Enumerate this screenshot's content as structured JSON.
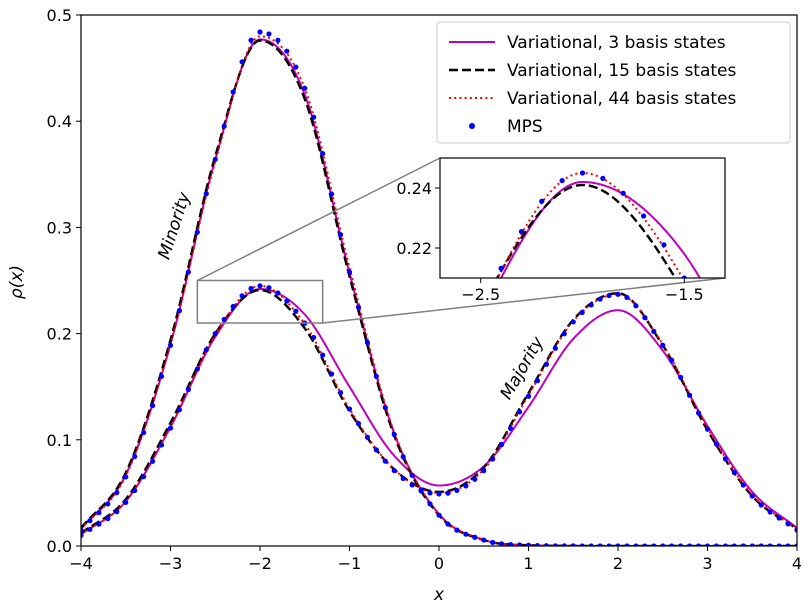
{
  "chart_data": {
    "type": "line",
    "xlabel": "x",
    "ylabel": "ρ(x)",
    "xlim": [
      -4,
      4
    ],
    "ylim": [
      0,
      0.5
    ],
    "x_ticks": [
      -4,
      -3,
      -2,
      -1,
      0,
      1,
      2,
      3,
      4
    ],
    "x_tick_labels": [
      "−4",
      "−3",
      "−2",
      "−1",
      "0",
      "1",
      "2",
      "3",
      "4"
    ],
    "y_ticks": [
      0,
      0.1,
      0.2,
      0.3,
      0.4,
      0.5
    ],
    "y_tick_labels": [
      "0.0",
      "0.1",
      "0.2",
      "0.3",
      "0.4",
      "0.5"
    ],
    "legend_position": "top-right",
    "annotations": [
      {
        "text": "Minority",
        "x": -2.9,
        "y": 0.3,
        "rotation_deg": -72
      },
      {
        "text": "Majority",
        "x": 0.98,
        "y": 0.165,
        "rotation_deg": -60
      }
    ],
    "series": [
      {
        "name": "Variational, 3 basis states",
        "style": "solid",
        "color": "#c000c0",
        "x": [
          -4,
          -3.5,
          -3,
          -2.5,
          -2,
          -1.5,
          -1,
          -0.5,
          0,
          0.5,
          1,
          1.5,
          2,
          2.5,
          3,
          3.5,
          4
        ],
        "minority": [
          0.016,
          0.067,
          0.19,
          0.364,
          0.477,
          0.425,
          0.257,
          0.106,
          0.03,
          0.0058,
          0.0008,
          0.0001,
          0,
          0,
          0,
          0,
          0
        ],
        "majority": [
          0.011,
          0.042,
          0.112,
          0.197,
          0.242,
          0.218,
          0.15,
          0.085,
          0.057,
          0.075,
          0.131,
          0.195,
          0.222,
          0.184,
          0.113,
          0.051,
          0.017
        ]
      },
      {
        "name": "Variational, 15 basis states",
        "style": "dashed",
        "color": "#000000",
        "x": [
          -4,
          -3.5,
          -3,
          -2.5,
          -2,
          -1.5,
          -1,
          -0.5,
          0,
          0.5,
          1,
          1.5,
          2,
          2.5,
          3,
          3.5,
          4
        ],
        "minority": [
          0.017,
          0.069,
          0.194,
          0.367,
          0.476,
          0.421,
          0.254,
          0.104,
          0.029,
          0.0056,
          0.0007,
          0.0001,
          0,
          0,
          0,
          0,
          0
        ],
        "majority": [
          0.012,
          0.044,
          0.116,
          0.2,
          0.241,
          0.205,
          0.127,
          0.072,
          0.051,
          0.074,
          0.144,
          0.213,
          0.238,
          0.189,
          0.109,
          0.047,
          0.016
        ]
      },
      {
        "name": "Variational, 44 basis states",
        "style": "dotted",
        "color": "#ff0000",
        "x": [
          -4,
          -3.5,
          -3,
          -2.5,
          -2,
          -1.5,
          -1,
          -0.5,
          0,
          0.5,
          1,
          1.5,
          2,
          2.5,
          3,
          3.5,
          4
        ],
        "minority": [
          0.016,
          0.066,
          0.19,
          0.362,
          0.48,
          0.431,
          0.262,
          0.107,
          0.03,
          0.0058,
          0.0008,
          0.0001,
          0,
          0,
          0,
          0,
          0
        ],
        "majority": [
          0.011,
          0.042,
          0.112,
          0.199,
          0.245,
          0.209,
          0.129,
          0.072,
          0.05,
          0.072,
          0.142,
          0.212,
          0.237,
          0.19,
          0.111,
          0.048,
          0.016
        ]
      },
      {
        "name": "MPS",
        "style": "markers",
        "color": "#0000ff",
        "x": [
          -4,
          -3.5,
          -3,
          -2.5,
          -2,
          -1.5,
          -1,
          -0.5,
          0,
          0.5,
          1,
          1.5,
          2,
          2.5,
          3,
          3.5,
          4
        ],
        "minority": [
          0.015,
          0.065,
          0.189,
          0.364,
          0.484,
          0.431,
          0.258,
          0.105,
          0.029,
          0.0056,
          0.0007,
          0.0001,
          0,
          0,
          0,
          0,
          0
        ],
        "majority": [
          0.01,
          0.041,
          0.111,
          0.2,
          0.245,
          0.21,
          0.129,
          0.071,
          0.049,
          0.071,
          0.141,
          0.211,
          0.237,
          0.189,
          0.11,
          0.047,
          0.015
        ]
      }
    ],
    "inset": {
      "xlim": [
        -2.7,
        -1.3
      ],
      "ylim": [
        0.21,
        0.25
      ],
      "x_ticks": [
        -2.5,
        -1.5
      ],
      "x_tick_labels": [
        "−2.5",
        "−1.5"
      ],
      "y_ticks": [
        0.22,
        0.24
      ],
      "y_tick_labels": [
        "0.22",
        "0.24"
      ]
    }
  }
}
